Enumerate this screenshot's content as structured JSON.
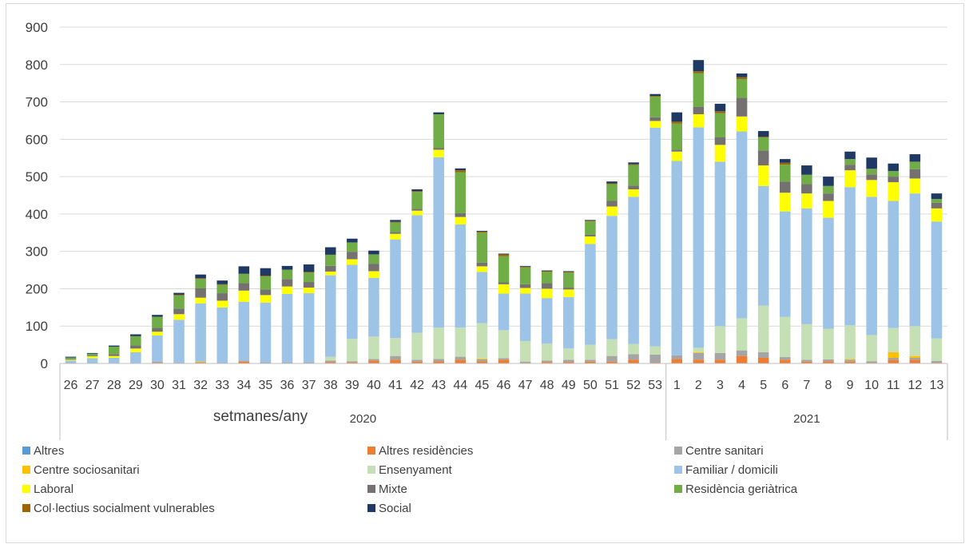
{
  "chart_data": {
    "type": "bar",
    "stacked": true,
    "xlabel": "setmanes/any",
    "ylabel": "",
    "ylim": [
      0,
      900
    ],
    "yticks": [
      0,
      100,
      200,
      300,
      400,
      500,
      600,
      700,
      800,
      900
    ],
    "grid": "horizontal",
    "legend_position": "bottom",
    "groups": [
      {
        "label": "2020",
        "count": 28
      },
      {
        "label": "2021",
        "count": 13
      }
    ],
    "categories": [
      "26",
      "27",
      "28",
      "29",
      "30",
      "31",
      "32",
      "33",
      "34",
      "35",
      "36",
      "37",
      "38",
      "39",
      "40",
      "41",
      "42",
      "43",
      "44",
      "45",
      "46",
      "47",
      "48",
      "49",
      "50",
      "51",
      "52",
      "53",
      "1",
      "2",
      "3",
      "4",
      "5",
      "6",
      "7",
      "8",
      "9",
      "10",
      "11",
      "12",
      "13"
    ],
    "series": [
      {
        "name": "Altres",
        "color": "#5b9bd5",
        "values": [
          0,
          0,
          0,
          0,
          0,
          0,
          0,
          0,
          0,
          0,
          0,
          0,
          0,
          0,
          0,
          0,
          0,
          0,
          0,
          0,
          0,
          0,
          0,
          0,
          0,
          0,
          0,
          0,
          0,
          0,
          0,
          0,
          0,
          0,
          0,
          0,
          0,
          0,
          0,
          0,
          0
        ]
      },
      {
        "name": "Altres residències",
        "color": "#ed7d31",
        "values": [
          0,
          0,
          0,
          0,
          2,
          1,
          2,
          1,
          5,
          1,
          1,
          1,
          4,
          3,
          8,
          10,
          5,
          6,
          10,
          6,
          10,
          2,
          4,
          4,
          5,
          5,
          10,
          2,
          12,
          10,
          10,
          20,
          15,
          10,
          5,
          6,
          5,
          2,
          10,
          10,
          2
        ]
      },
      {
        "name": "Centre sanitari",
        "color": "#a5a5a5",
        "values": [
          2,
          0,
          0,
          0,
          3,
          1,
          2,
          1,
          3,
          2,
          2,
          2,
          4,
          3,
          4,
          10,
          5,
          6,
          8,
          5,
          4,
          3,
          4,
          6,
          5,
          15,
          15,
          22,
          10,
          18,
          18,
          15,
          15,
          7,
          5,
          5,
          5,
          4,
          5,
          5,
          5
        ]
      },
      {
        "name": "Centre sociosanitari",
        "color": "#ffc000",
        "values": [
          0,
          0,
          0,
          0,
          0,
          0,
          2,
          0,
          0,
          0,
          0,
          0,
          0,
          0,
          0,
          0,
          0,
          0,
          0,
          2,
          0,
          0,
          0,
          0,
          0,
          0,
          0,
          0,
          0,
          2,
          0,
          0,
          0,
          0,
          0,
          0,
          2,
          0,
          15,
          5,
          0
        ]
      },
      {
        "name": "Ensenyament",
        "color": "#c5e0b4",
        "values": [
          0,
          0,
          0,
          0,
          0,
          0,
          0,
          0,
          0,
          0,
          0,
          0,
          10,
          60,
          60,
          48,
          72,
          84,
          78,
          95,
          75,
          55,
          45,
          30,
          40,
          45,
          27,
          22,
          0,
          12,
          72,
          86,
          125,
          108,
          95,
          82,
          90,
          70,
          65,
          80,
          60
        ]
      },
      {
        "name": "Familiar / domicili",
        "color": "#9dc3e6",
        "values": [
          6,
          14,
          15,
          30,
          70,
          115,
          155,
          148,
          157,
          160,
          183,
          185,
          218,
          198,
          157,
          264,
          315,
          456,
          276,
          137,
          98,
          127,
          122,
          138,
          270,
          330,
          394,
          585,
          520,
          590,
          440,
          500,
          320,
          282,
          310,
          297,
          370,
          370,
          340,
          355,
          313
        ]
      },
      {
        "name": "Laboral",
        "color": "#ffff00",
        "values": [
          2,
          5,
          5,
          10,
          10,
          15,
          15,
          18,
          30,
          20,
          20,
          15,
          10,
          15,
          18,
          15,
          12,
          20,
          20,
          15,
          25,
          15,
          25,
          20,
          20,
          25,
          20,
          18,
          25,
          35,
          45,
          40,
          55,
          50,
          40,
          45,
          45,
          45,
          50,
          40,
          35
        ]
      },
      {
        "name": "Mixte",
        "color": "#767171",
        "values": [
          2,
          2,
          5,
          8,
          10,
          15,
          25,
          20,
          20,
          15,
          20,
          15,
          15,
          20,
          20,
          5,
          5,
          5,
          10,
          10,
          5,
          10,
          15,
          5,
          5,
          15,
          10,
          10,
          5,
          20,
          20,
          50,
          40,
          30,
          25,
          20,
          15,
          15,
          15,
          25,
          15
        ]
      },
      {
        "name": "Residència geriàtrica",
        "color": "#70ad47",
        "values": [
          4,
          5,
          20,
          25,
          30,
          35,
          25,
          22,
          25,
          35,
          25,
          25,
          30,
          25,
          25,
          25,
          45,
          90,
          110,
          80,
          70,
          45,
          30,
          40,
          35,
          45,
          55,
          55,
          70,
          90,
          65,
          50,
          35,
          45,
          25,
          20,
          15,
          15,
          15,
          20,
          10
        ]
      },
      {
        "name": "Col·lectius socialment vulnerables",
        "color": "#9c6500",
        "values": [
          0,
          0,
          0,
          0,
          0,
          2,
          2,
          2,
          0,
          2,
          0,
          2,
          0,
          0,
          0,
          2,
          2,
          0,
          5,
          3,
          5,
          2,
          2,
          2,
          2,
          2,
          2,
          2,
          5,
          5,
          5,
          5,
          2,
          5,
          0,
          0,
          0,
          0,
          0,
          0,
          0
        ]
      },
      {
        "name": "Social",
        "color": "#203864",
        "values": [
          2,
          2,
          3,
          5,
          5,
          5,
          10,
          10,
          20,
          20,
          10,
          20,
          20,
          10,
          10,
          5,
          5,
          5,
          5,
          2,
          2,
          2,
          2,
          2,
          2,
          5,
          5,
          5,
          25,
          30,
          20,
          10,
          15,
          10,
          25,
          25,
          20,
          30,
          20,
          20,
          15
        ]
      }
    ]
  }
}
